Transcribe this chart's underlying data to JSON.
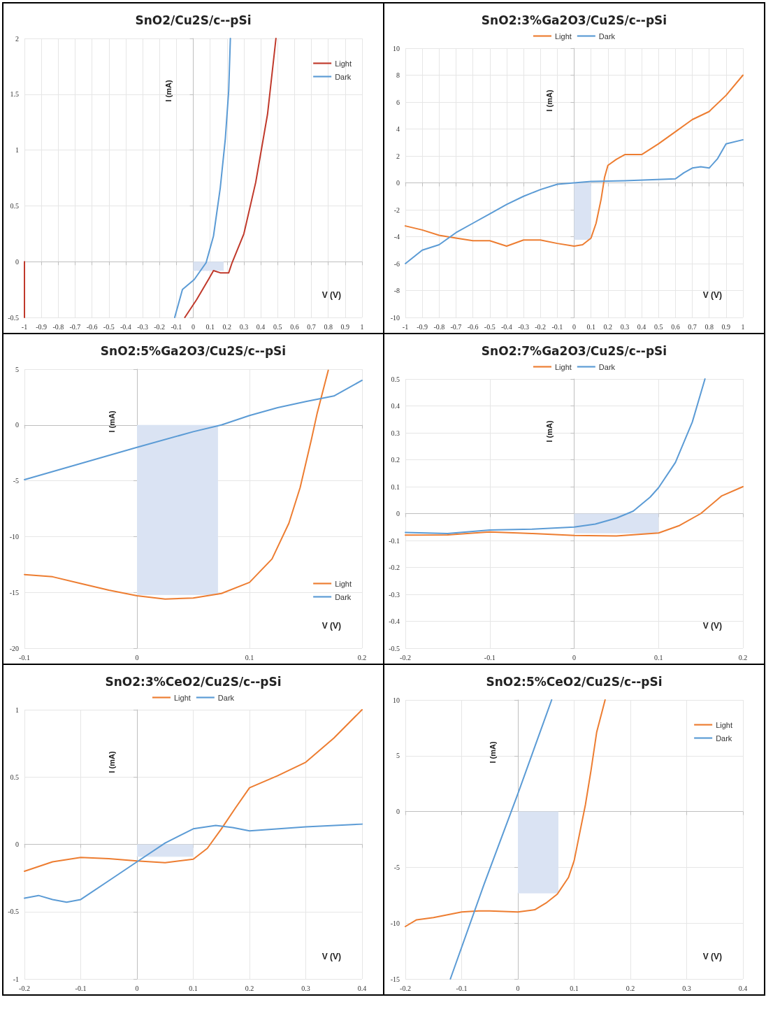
{
  "chart_data": [
    {
      "type": "line",
      "title": "SnO2/Cu2S/c--pSi",
      "xlabel": "V (V)",
      "ylabel": "I (mA)",
      "xlim": [
        -1,
        1
      ],
      "xticks": [
        -1,
        -0.9,
        -0.8,
        -0.7,
        -0.6,
        -0.5,
        -0.4,
        -0.3,
        -0.2,
        -0.1,
        0,
        0.1,
        0.2,
        0.3,
        0.4,
        0.5,
        0.6,
        0.7,
        0.8,
        0.9,
        1
      ],
      "ylim": [
        -0.5,
        2
      ],
      "yticks": [
        -0.5,
        0,
        0.5,
        1,
        1.5,
        2
      ],
      "grid": true,
      "legend": "top right",
      "series": [
        {
          "type": "area",
          "color": "#dae3f3",
          "line_style": "dashed",
          "x": [
            0,
            0.18
          ],
          "values": [
            -0.08,
            -0.08
          ]
        },
        {
          "name": "Light",
          "color": "#c0392b",
          "x": [
            -1,
            -1,
            -0.5,
            -0.05,
            0.02,
            0.09,
            0.12,
            0.16,
            0.21,
            0.23,
            0.3,
            0.37,
            0.44,
            0.49
          ],
          "values": [
            0,
            -0.5,
            null,
            -0.5,
            -0.34,
            -0.16,
            -0.08,
            -0.1,
            -0.1,
            -0.01,
            0.25,
            0.71,
            1.32,
            2
          ]
        },
        {
          "name": "Dark",
          "color": "#5b9bd5",
          "x": [
            -0.11,
            -0.064,
            0.006,
            0.076,
            0.12,
            0.16,
            0.19,
            0.21,
            0.22
          ],
          "values": [
            -0.5,
            -0.25,
            -0.16,
            -0.01,
            0.23,
            0.66,
            1.1,
            1.53,
            2
          ]
        }
      ]
    },
    {
      "type": "line",
      "title": "SnO2:3%Ga2O3/Cu2S/c--pSi",
      "xlabel": "V (V)",
      "ylabel": "I (mA)",
      "xlim": [
        -1,
        1
      ],
      "xticks": [
        -1,
        -0.9,
        -0.8,
        -0.7,
        -0.6,
        -0.5,
        -0.4,
        -0.3,
        -0.2,
        -0.1,
        0,
        0.1,
        0.2,
        0.3,
        0.4,
        0.5,
        0.6,
        0.7,
        0.8,
        0.9,
        1
      ],
      "ylim": [
        -10,
        10
      ],
      "yticks": [
        -10,
        -8,
        -6,
        -4,
        -2,
        0,
        2,
        4,
        6,
        8,
        10
      ],
      "grid": true,
      "legend": "top",
      "series": [
        {
          "type": "area",
          "color": "#dae3f3",
          "x": [
            0,
            0.1
          ],
          "values": [
            -4.2,
            -4.2
          ]
        },
        {
          "name": "Light",
          "color": "#ed7d31",
          "x": [
            -1,
            -0.9,
            -0.8,
            -0.7,
            -0.6,
            -0.5,
            -0.4,
            -0.3,
            -0.2,
            -0.1,
            0,
            0.05,
            0.1,
            0.13,
            0.16,
            0.18,
            0.2,
            0.25,
            0.3,
            0.4,
            0.5,
            0.6,
            0.7,
            0.8,
            0.9,
            1
          ],
          "values": [
            -3.2,
            -3.5,
            -3.9,
            -4.1,
            -4.3,
            -4.3,
            -4.7,
            -4.25,
            -4.25,
            -4.5,
            -4.7,
            -4.6,
            -4.1,
            -3,
            -1.2,
            0.4,
            1.3,
            1.75,
            2.1,
            2.1,
            2.9,
            3.8,
            4.7,
            5.3,
            6.5,
            8
          ]
        },
        {
          "name": "Dark",
          "color": "#5b9bd5",
          "x": [
            -1,
            -0.9,
            -0.8,
            -0.7,
            -0.6,
            -0.5,
            -0.4,
            -0.3,
            -0.2,
            -0.1,
            0,
            0.1,
            0.3,
            0.6,
            0.65,
            0.7,
            0.75,
            0.8,
            0.85,
            0.9,
            1
          ],
          "values": [
            -6,
            -5,
            -4.6,
            -3.7,
            -3,
            -2.3,
            -1.6,
            -1,
            -0.5,
            -0.1,
            0,
            0.1,
            0.15,
            0.3,
            0.75,
            1.1,
            1.2,
            1.1,
            1.8,
            2.9,
            3.2
          ]
        }
      ]
    },
    {
      "type": "line",
      "title": "SnO2:5%Ga2O3/Cu2S/c--pSi",
      "xlabel": "V (V)",
      "ylabel": "I (mA)",
      "xlim": [
        -0.1,
        0.2
      ],
      "xticks": [
        -0.1,
        0,
        0.1,
        0.2
      ],
      "ylim": [
        -20,
        5
      ],
      "yticks": [
        -20,
        -15,
        -10,
        -5,
        0,
        5
      ],
      "grid": true,
      "legend": "bottom right",
      "series": [
        {
          "type": "area",
          "color": "#dae3f3",
          "x": [
            0,
            0.072
          ],
          "values": [
            -15.2,
            -15.2
          ]
        },
        {
          "name": "Light",
          "color": "#ed7d31",
          "x": [
            -0.1,
            -0.075,
            -0.05,
            -0.025,
            0,
            0.025,
            0.05,
            0.075,
            0.1,
            0.12,
            0.135,
            0.145,
            0.155,
            0.16,
            0.17
          ],
          "values": [
            -13.4,
            -13.6,
            -14.2,
            -14.8,
            -15.3,
            -15.6,
            -15.5,
            -15.1,
            -14.1,
            -12,
            -8.8,
            -5.6,
            -1.3,
            1,
            4.9
          ]
        },
        {
          "name": "Dark",
          "color": "#5b9bd5",
          "x": [
            -0.1,
            0,
            0.05,
            0.075,
            0.1,
            0.125,
            0.15,
            0.175,
            0.2
          ],
          "values": [
            -4.9,
            -2,
            -0.6,
            0,
            0.85,
            1.55,
            2.1,
            2.6,
            4
          ]
        }
      ]
    },
    {
      "type": "line",
      "title": "SnO2:7%Ga2O3/Cu2S/c--pSi",
      "xlabel": "V (V)",
      "ylabel": "I (mA)",
      "xlim": [
        -0.2,
        0.2
      ],
      "xticks": [
        -0.2,
        -0.1,
        0,
        0.1,
        0.2
      ],
      "ylim": [
        -0.5,
        0.5
      ],
      "yticks": [
        -0.5,
        -0.4,
        -0.3,
        -0.2,
        -0.1,
        0,
        0.1,
        0.2,
        0.3,
        0.4,
        0.5
      ],
      "grid": true,
      "legend": "top",
      "series": [
        {
          "type": "area",
          "color": "#dae3f3",
          "x": [
            0,
            0.1
          ],
          "values": [
            -0.072,
            -0.072
          ]
        },
        {
          "name": "Light",
          "color": "#ed7d31",
          "x": [
            -0.2,
            -0.15,
            -0.1,
            -0.05,
            0,
            0.05,
            0.1,
            0.125,
            0.15,
            0.175,
            0.2
          ],
          "values": [
            -0.08,
            -0.079,
            -0.068,
            -0.074,
            -0.081,
            -0.083,
            -0.072,
            -0.044,
            0,
            0.066,
            0.1
          ]
        },
        {
          "name": "Dark",
          "color": "#5b9bd5",
          "x": [
            -0.2,
            -0.15,
            -0.1,
            -0.05,
            0,
            0.025,
            0.05,
            0.07,
            0.09,
            0.1,
            0.12,
            0.14,
            0.155
          ],
          "values": [
            -0.07,
            -0.074,
            -0.061,
            -0.058,
            -0.05,
            -0.039,
            -0.017,
            0.009,
            0.061,
            0.096,
            0.19,
            0.34,
            0.5
          ]
        }
      ]
    },
    {
      "type": "line",
      "title": "SnO2:3%CeO2/Cu2S/c--pSi",
      "xlabel": "V (V)",
      "ylabel": "I (mA)",
      "xlim": [
        -0.2,
        0.4
      ],
      "xticks": [
        -0.2,
        -0.1,
        0,
        0.1,
        0.2,
        0.3,
        0.4
      ],
      "ylim": [
        -1,
        1
      ],
      "yticks": [
        -1,
        -0.5,
        0,
        0.5,
        1
      ],
      "grid": true,
      "legend": "top",
      "series": [
        {
          "type": "area",
          "color": "#dae3f3",
          "x": [
            0,
            0.1
          ],
          "values": [
            -0.09,
            -0.09
          ]
        },
        {
          "name": "Light",
          "color": "#ed7d31",
          "x": [
            -0.2,
            -0.15,
            -0.1,
            -0.05,
            0,
            0.05,
            0.1,
            0.125,
            0.15,
            0.175,
            0.2,
            0.25,
            0.3,
            0.35,
            0.4
          ],
          "values": [
            -0.2,
            -0.13,
            -0.097,
            -0.106,
            -0.124,
            -0.136,
            -0.11,
            -0.03,
            0.115,
            0.27,
            0.42,
            0.51,
            0.61,
            0.79,
            1
          ]
        },
        {
          "name": "Dark",
          "color": "#5b9bd5",
          "x": [
            -0.2,
            -0.175,
            -0.15,
            -0.125,
            -0.1,
            -0.05,
            0,
            0.05,
            0.1,
            0.14,
            0.17,
            0.2,
            0.3,
            0.4
          ],
          "values": [
            -0.4,
            -0.38,
            -0.41,
            -0.43,
            -0.41,
            -0.27,
            -0.13,
            0.01,
            0.115,
            0.14,
            0.125,
            0.1,
            0.13,
            0.15
          ]
        }
      ]
    },
    {
      "type": "line",
      "title": "SnO2:5%CeO2/Cu2S/c--pSi",
      "xlabel": "V (V)",
      "ylabel": "I (mA)",
      "xlim": [
        -0.2,
        0.4
      ],
      "xticks": [
        -0.2,
        -0.1,
        0,
        0.1,
        0.2,
        0.3,
        0.4
      ],
      "ylim": [
        -15,
        10
      ],
      "yticks": [
        -15,
        -10,
        -5,
        0,
        5,
        10
      ],
      "grid": true,
      "legend": "top right",
      "series": [
        {
          "type": "area",
          "color": "#dae3f3",
          "x": [
            0,
            0.072
          ],
          "values": [
            -7.3,
            -7.3
          ]
        },
        {
          "name": "Light",
          "color": "#ed7d31",
          "x": [
            -0.2,
            -0.18,
            -0.15,
            -0.1,
            -0.07,
            -0.05,
            0,
            0.03,
            0.05,
            0.07,
            0.09,
            0.1,
            0.11,
            0.12,
            0.13,
            0.14,
            0.155
          ],
          "values": [
            -10.3,
            -9.7,
            -9.5,
            -9,
            -8.9,
            -8.9,
            -9,
            -8.8,
            -8.2,
            -7.4,
            -5.9,
            -4.4,
            -1.9,
            0.6,
            3.7,
            7.1,
            10
          ]
        },
        {
          "name": "Dark",
          "color": "#5b9bd5",
          "x": [
            -0.12,
            -0.06,
            0,
            0.06
          ],
          "values": [
            -15,
            -6.5,
            1.6,
            10
          ]
        }
      ]
    }
  ]
}
